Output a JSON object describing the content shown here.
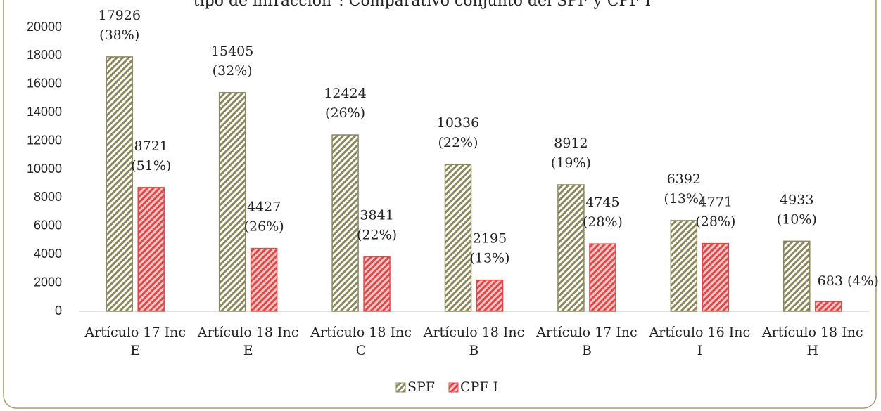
{
  "chart_data": {
    "type": "bar",
    "title": "tipo de infracción\": Comparativo conjunto del SPF y CPF I",
    "categories": [
      "Artículo 17 Inc E",
      "Artículo 18 Inc E",
      "Artículo 18 Inc C",
      "Artículo 18 Inc B",
      "Artículo 17 Inc B",
      "Artículo 16 Inc I",
      "Artículo 18 Inc H"
    ],
    "series": [
      {
        "name": "SPF",
        "color": "#8b875a",
        "values": [
          17926,
          15405,
          12424,
          10336,
          8912,
          6392,
          4933
        ],
        "value_labels": [
          "17926 (38%)",
          "15405 (32%)",
          "12424 (26%)",
          "10336 (22%)",
          "8912 (19%)",
          "6392 (13%)",
          "4933 (10%)"
        ]
      },
      {
        "name": "CPF I",
        "color": "#e04848",
        "values": [
          8721,
          4427,
          3841,
          2195,
          4745,
          4771,
          683
        ],
        "value_labels": [
          "8721 (51%)",
          "4427 (26%)",
          "3841 (22%)",
          "2195 (13%)",
          "4745 (28%)",
          "4771 (28%)",
          "683 (4%)"
        ]
      }
    ],
    "ylim": [
      0,
      20000
    ],
    "yticks": [
      0,
      2000,
      4000,
      6000,
      8000,
      10000,
      12000,
      14000,
      16000,
      18000,
      20000
    ],
    "legend": "bottom",
    "grid": false
  }
}
